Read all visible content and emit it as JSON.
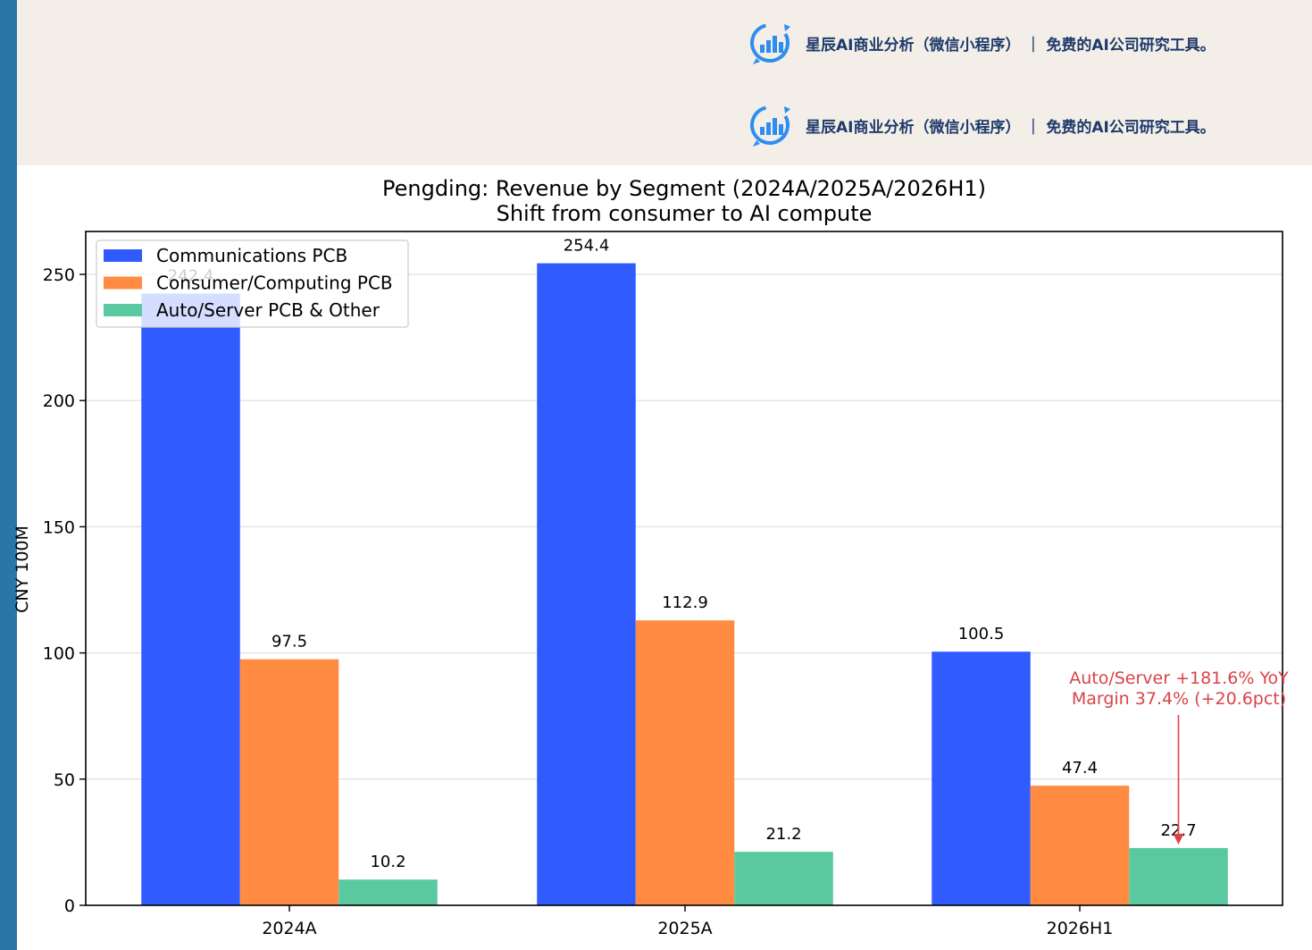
{
  "watermark": {
    "text": "星辰AI商业分析（微信小程序） ｜ 免费的AI公司研究工具。",
    "icon": "bar-chart-refresh-logo-icon",
    "color": "#1f3a6b"
  },
  "chart_data": {
    "type": "bar",
    "title": "Pengding: Revenue by Segment (2024A/2025A/2026H1)",
    "subtitle": "Shift from consumer to AI compute",
    "xlabel": "",
    "ylabel": "CNY 100M",
    "categories": [
      "2024A",
      "2025A",
      "2026H1"
    ],
    "series": [
      {
        "name": "Communications PCB",
        "values": [
          242.4,
          254.4,
          100.5
        ],
        "color": "#2f5bff"
      },
      {
        "name": "Consumer/Computing PCB",
        "values": [
          97.5,
          112.9,
          47.4
        ],
        "color": "#ff8c42"
      },
      {
        "name": "Auto/Server PCB & Other",
        "values": [
          10.2,
          21.2,
          22.7
        ],
        "color": "#5ac99f"
      }
    ],
    "ylim": [
      0,
      267
    ],
    "yticks": [
      0,
      50,
      100,
      150,
      200,
      250
    ],
    "grid": true,
    "legend_position": "top-left",
    "annotation": {
      "lines": [
        "Auto/Server +181.6% YoY",
        "Margin 37.4% (+20.6pct)"
      ],
      "color": "#d9434a",
      "target_category": "2026H1",
      "target_series": "Auto/Server PCB & Other",
      "target_value": 22.7
    }
  }
}
